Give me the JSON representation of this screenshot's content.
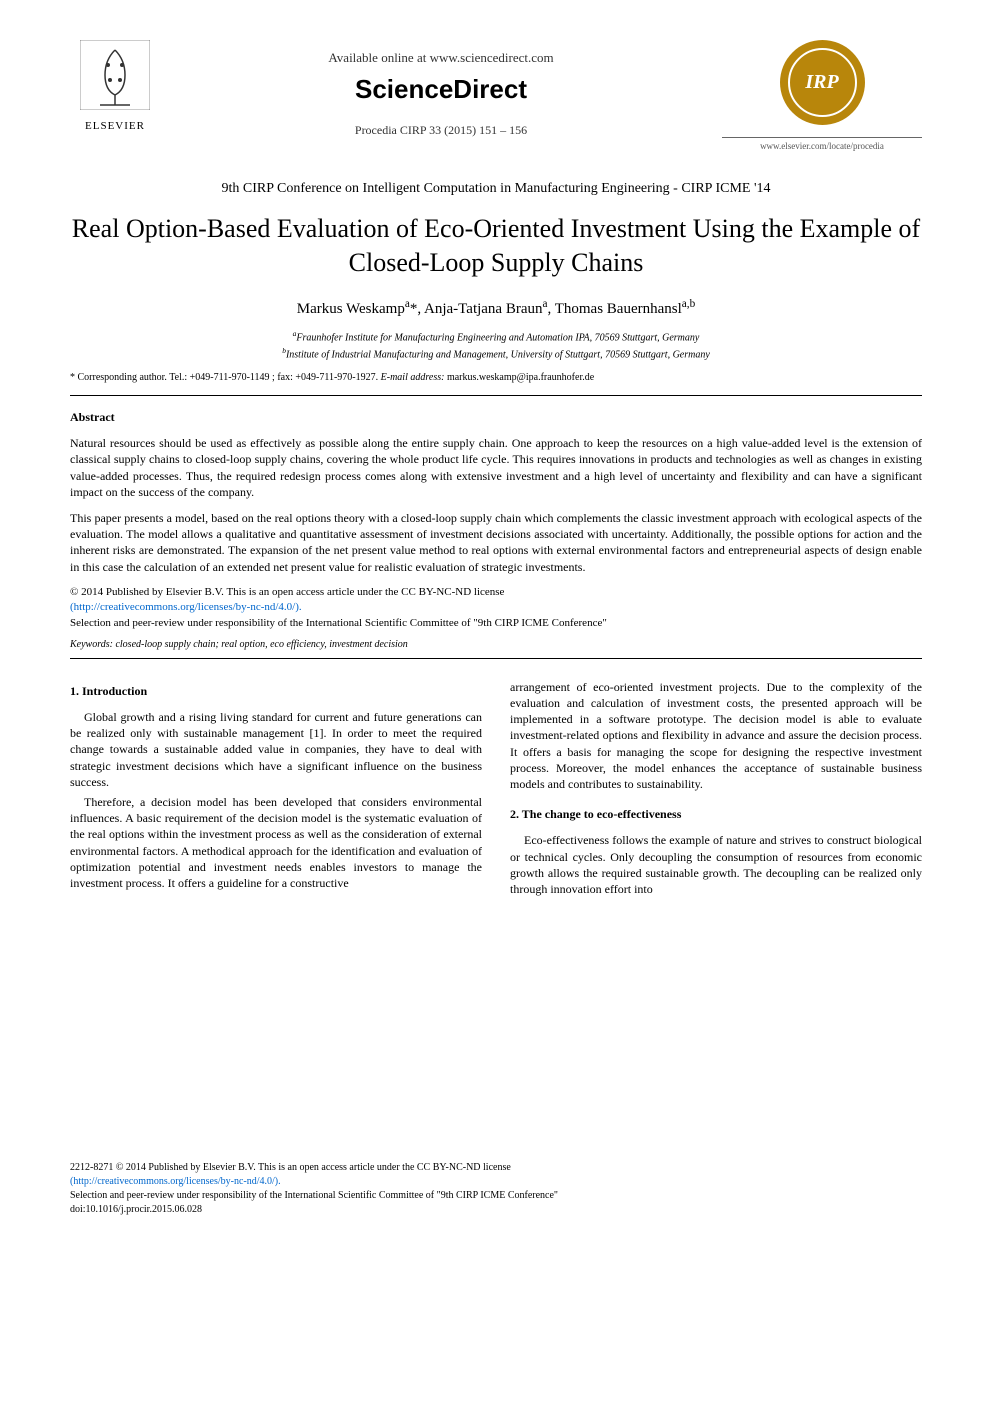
{
  "header": {
    "elsevier_label": "ELSEVIER",
    "available_online": "Available online at www.sciencedirect.com",
    "sciencedirect": "ScienceDirect",
    "procedia_line": "Procedia CIRP 33 (2015) 151 – 156",
    "irp_label": "IRP",
    "elsevier_url": "www.elsevier.com/locate/procedia"
  },
  "conference": "9th CIRP Conference on Intelligent Computation in Manufacturing Engineering - CIRP ICME '14",
  "title": "Real Option-Based Evaluation of Eco-Oriented Investment Using the Example of Closed-Loop Supply Chains",
  "authors_html": "Markus Weskamp<sup>a</sup>*, Anja-Tatjana Braun<sup>a</sup>, Thomas Bauernhansl<sup>a,b</sup>",
  "affiliations": {
    "a": "Fraunhofer Institute for Manufacturing Engineering and Automation IPA, 70569 Stuttgart, Germany",
    "b": "Institute of Industrial Manufacturing and Management, University of Stuttgart, 70569 Stuttgart, Germany"
  },
  "corresponding": {
    "prefix": "* Corresponding author. Tel.: +049-711-970-1149 ; fax: +049-711-970-1927. ",
    "email_label": "E-mail address:",
    "email": " markus.weskamp@ipa.fraunhofer.de"
  },
  "abstract_heading": "Abstract",
  "abstract_paragraphs": [
    "Natural resources should be used as effectively as possible along the entire supply chain. One approach to keep the resources on a high value-added level is the extension of classical supply chains to closed-loop supply chains, covering the whole product life cycle. This requires innovations in products and technologies as well as changes in existing value-added processes. Thus, the required redesign process comes along with extensive investment and a high level of uncertainty and flexibility and can have a significant impact on the success of the company.",
    "This paper presents a model, based on the real options theory with a closed-loop supply chain which complements the classic investment approach with ecological aspects of the evaluation. The model allows a qualitative and quantitative assessment of investment decisions associated with uncertainty. Additionally, the possible options for action and the inherent risks are demonstrated. The expansion of the net present value method to real options with external environmental factors and entrepreneurial aspects of design enable in this case the calculation of an extended net present value for realistic evaluation of strategic investments."
  ],
  "copyright": {
    "line1": "© 2014 Published by Elsevier B.V. This is an open access article under the CC BY-NC-ND license",
    "license_url": "(http://creativecommons.org/licenses/by-nc-nd/4.0/).",
    "peer_review": "Selection and peer-review under responsibility of the International Scientific Committee of \"9th CIRP ICME Conference\""
  },
  "keywords": {
    "label": "Keywords:",
    "text": " closed-loop supply chain; real option, eco efficiency, investment decision"
  },
  "sections": {
    "intro_heading": "1. Introduction",
    "intro_para1": "Global growth and a rising living standard for current and future generations can be realized only with sustainable management [1]. In order to meet the required change towards a sustainable added value in companies, they have to deal with strategic investment decisions which have a significant influence on the business success.",
    "intro_para2": "Therefore, a decision model has been developed that considers environmental influences. A basic requirement of the decision model is the systematic evaluation of the real options within the investment process as well as the consideration of external environmental factors. A methodical approach for the identification and evaluation of optimization potential and investment needs enables investors to manage the investment process. It offers a guideline for a constructive",
    "intro_continuation": "arrangement of eco-oriented investment projects. Due to the complexity of the evaluation and calculation of investment costs, the presented approach will be implemented in a software prototype. The decision model is able to evaluate investment-related options and flexibility in advance and assure the decision process. It offers a basis for managing the scope for designing the respective investment process. Moreover, the model enhances the acceptance of sustainable business models and contributes to sustainability.",
    "section2_heading": "2. The change to eco-effectiveness",
    "section2_para1": "Eco-effectiveness follows the example of nature and strives to construct biological or technical cycles. Only decoupling the consumption of resources from economic growth allows the required sustainable growth. The decoupling can be realized only through innovation effort into"
  },
  "footer": {
    "issn_line": "2212-8271 © 2014 Published by Elsevier B.V. This is an open access article under the CC BY-NC-ND license",
    "license_url": "(http://creativecommons.org/licenses/by-nc-nd/4.0/).",
    "peer_review": "Selection and peer-review under responsibility of the International Scientific Committee of \"9th CIRP ICME Conference\"",
    "doi": "doi:10.1016/j.procir.2015.06.028"
  },
  "colors": {
    "text": "#000000",
    "link": "#0066cc",
    "irp_bg": "#b8860b",
    "background": "#ffffff"
  },
  "typography": {
    "body_font": "Times New Roman",
    "title_size_pt": 26,
    "body_size_pt": 12,
    "small_size_pt": 10
  }
}
